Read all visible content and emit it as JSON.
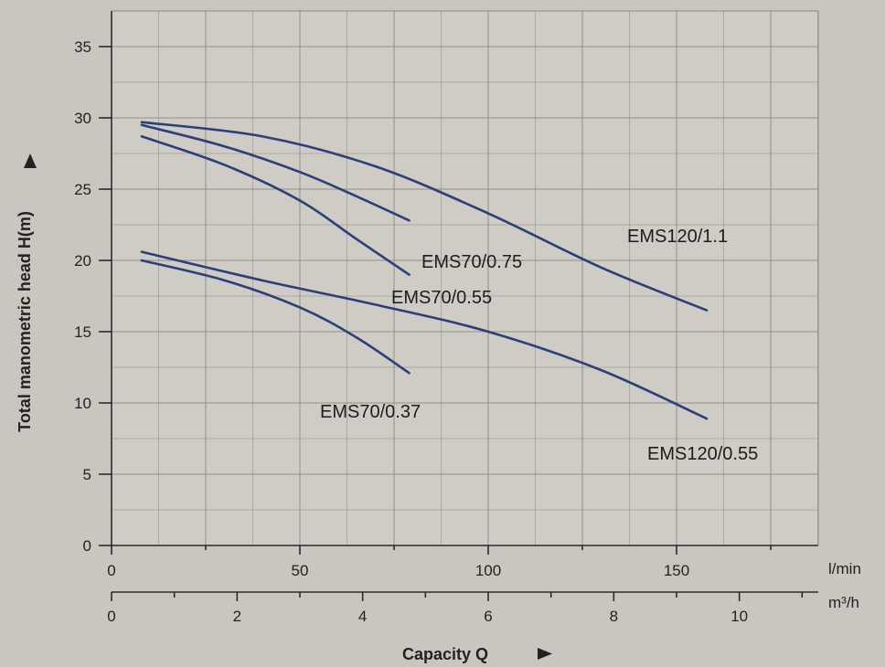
{
  "chart_data": {
    "type": "line",
    "title": "",
    "ylabel": "Total manometric head H(m)",
    "xlabel": "Capacity Q",
    "x_unit_primary": "l/min",
    "x_unit_secondary": "m³/h",
    "xlim": [
      0,
      200
    ],
    "ylim": [
      0,
      37
    ],
    "yticks": [
      0,
      5,
      10,
      15,
      20,
      25,
      30,
      35
    ],
    "xticks_primary": [
      0,
      50,
      100,
      150
    ],
    "xticks_secondary": [
      0,
      2,
      4,
      6,
      8,
      10
    ],
    "grid": true,
    "series": [
      {
        "name": "EMS120/1.1",
        "x": [
          8,
          40,
          70,
          100,
          130,
          158
        ],
        "y": [
          29.7,
          28.7,
          26.6,
          23.3,
          19.5,
          16.5
        ]
      },
      {
        "name": "EMS70/0.75",
        "x": [
          8,
          30,
          50,
          65,
          79
        ],
        "y": [
          29.5,
          28.0,
          26.2,
          24.5,
          22.8
        ]
      },
      {
        "name": "EMS70/0.55",
        "x": [
          8,
          30,
          50,
          65,
          79
        ],
        "y": [
          28.7,
          26.7,
          24.2,
          21.5,
          19.0
        ]
      },
      {
        "name": "EMS120/0.55",
        "x": [
          8,
          40,
          70,
          100,
          130,
          158
        ],
        "y": [
          20.6,
          18.6,
          16.9,
          15.0,
          12.3,
          8.9
        ]
      },
      {
        "name": "EMS70/0.37",
        "x": [
          8,
          30,
          50,
          65,
          79
        ],
        "y": [
          20.0,
          18.6,
          16.7,
          14.6,
          12.1
        ]
      }
    ]
  },
  "colors": {
    "curve": "#2b3f78",
    "background": "#c9c6bf",
    "grid": "#8a8884"
  }
}
